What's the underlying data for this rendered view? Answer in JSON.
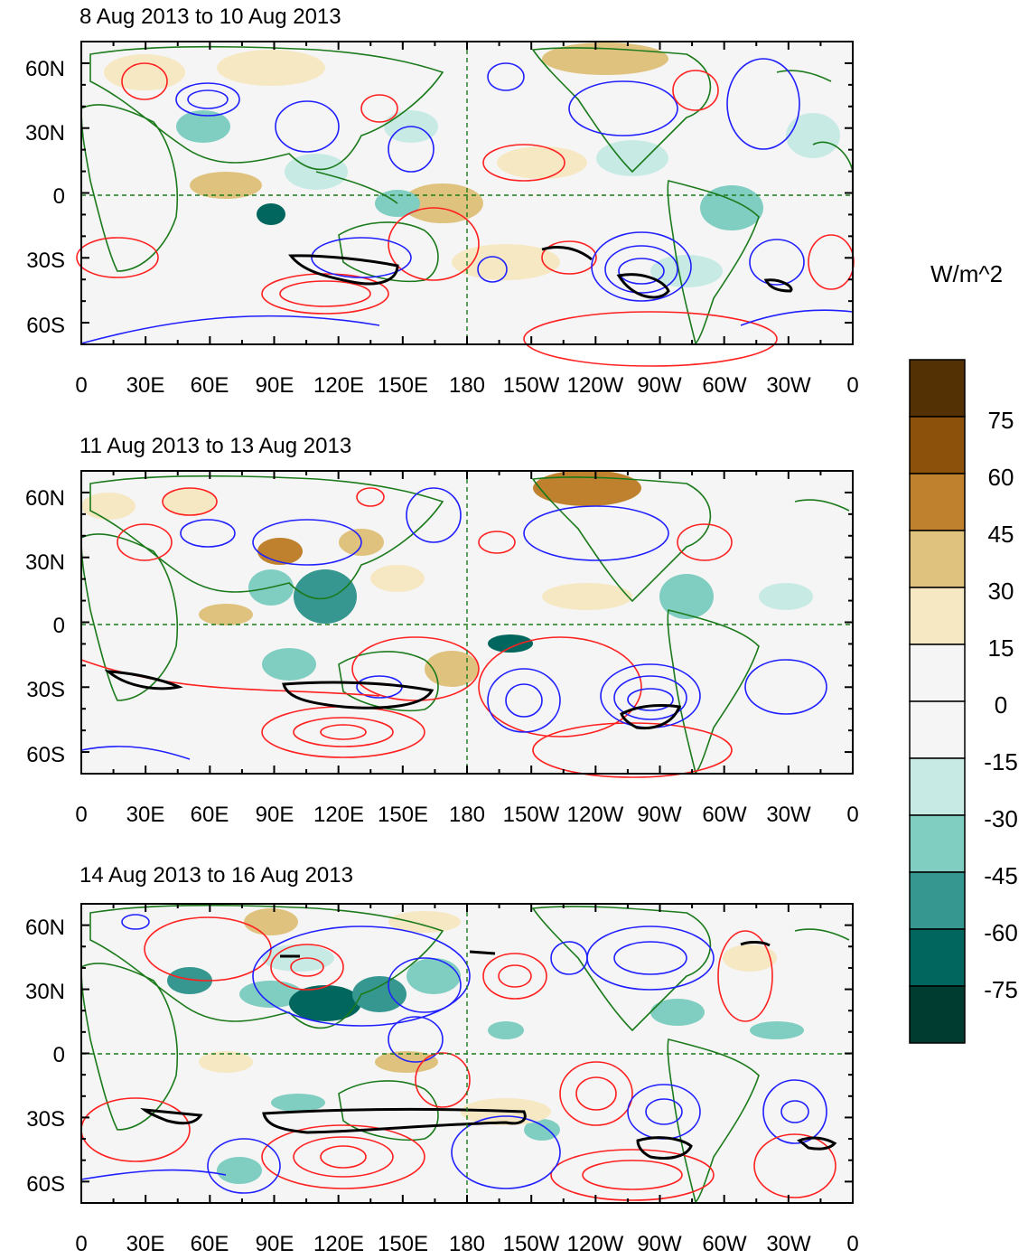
{
  "panels": [
    {
      "title": "8 Aug 2013 to 10 Aug 2013"
    },
    {
      "title": "11 Aug 2013 to 13 Aug 2013"
    },
    {
      "title": "14 Aug 2013 to 16 Aug 2013"
    }
  ],
  "lat_labels": [
    "60N",
    "30N",
    "0",
    "30S",
    "60S"
  ],
  "lon_labels": [
    "0",
    "30E",
    "60E",
    "90E",
    "120E",
    "150E",
    "180",
    "150W",
    "120W",
    "90W",
    "60W",
    "30W",
    "0"
  ],
  "colorbar": {
    "units": "W/m^2",
    "labels": [
      "75",
      "60",
      "45",
      "30",
      "15",
      "0",
      "-15",
      "-30",
      "-45",
      "-60",
      "-75"
    ],
    "colors": [
      "#543005",
      "#8c510a",
      "#bf812d",
      "#dfc27d",
      "#f6e8c3",
      "#f5f5f5",
      "#f5f5f5",
      "#c7eae5",
      "#80cdc1",
      "#35978f",
      "#01665e",
      "#003c30"
    ]
  }
}
